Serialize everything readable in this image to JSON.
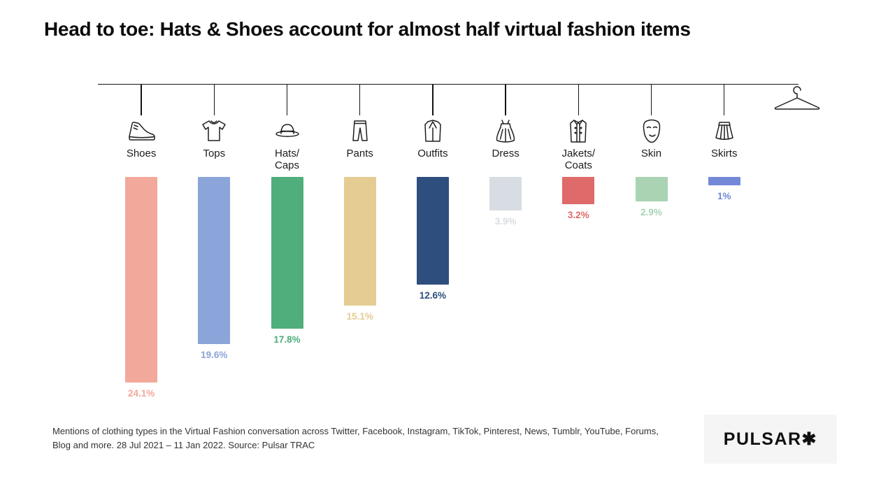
{
  "title": "Head to toe: Hats & Shoes account for almost half virtual fashion items",
  "chart_data": {
    "type": "bar",
    "orientation": "hanging-columns",
    "title": "Head to toe: Hats & Shoes account for almost half virtual fashion items",
    "categories": [
      "Shoes",
      "Tops",
      "Hats/Caps",
      "Pants",
      "Outfits",
      "Dress",
      "Jakets/Coats",
      "Skin",
      "Skirts"
    ],
    "values": [
      24.1,
      19.6,
      17.8,
      15.1,
      12.6,
      3.9,
      3.2,
      2.9,
      1
    ],
    "value_labels": [
      "24.1%",
      "19.6%",
      "17.8%",
      "15.1%",
      "12.6%",
      "3.9%",
      "3.2%",
      "2.9%",
      "1%"
    ],
    "colors": [
      "#f2a89a",
      "#8ba4d9",
      "#4fae7c",
      "#e4cc93",
      "#2e4e7e",
      "#d8dde3",
      "#de6a6a",
      "#a9d3b2",
      "#7488d8"
    ],
    "icons": [
      "sneaker-icon",
      "tshirt-icon",
      "hat-icon",
      "pants-icon",
      "suit-icon",
      "dress-icon",
      "coat-icon",
      "mask-icon",
      "skirt-icon",
      "hanger-icon"
    ],
    "unit": "%",
    "legend": "none",
    "grid": "off",
    "ylim": [
      0,
      25
    ]
  },
  "footer": {
    "note": "Mentions of clothing types in the Virtual Fashion conversation across Twitter, Facebook, Instagram, TikTok, Pinterest, News, Tumblr, YouTube, Forums, Blog and more. 28 Jul 2021  – 11 Jan 2022. Source: Pulsar TRAC",
    "logo": "PULSAR✱"
  }
}
